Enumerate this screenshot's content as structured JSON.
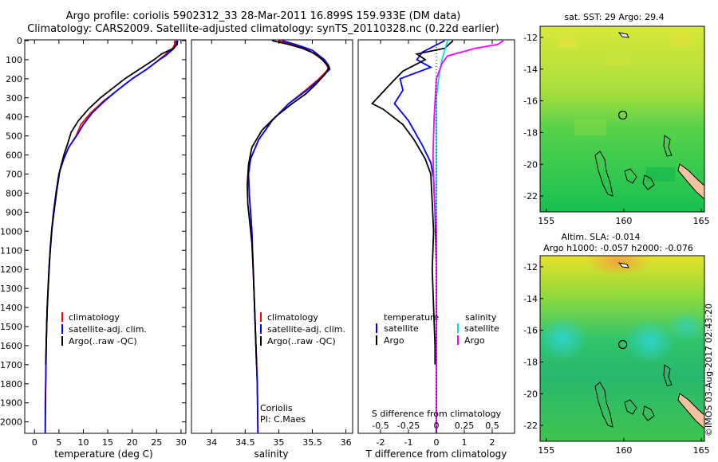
{
  "figure": {
    "title_line1": "Argo profile: coriolis 5902312_33 28-Mar-2011 16.899S 159.933E (DM data)",
    "title_line2": "Climatology: CARS2009. Satellite-adjusted climatology: synTS_20110328.nc (0.22d earlier)",
    "stamp": "©IMOS 03-Aug-2017 02:43:20",
    "colors": {
      "red": "#ff0000",
      "blue": "#0000ff",
      "black": "#000000",
      "cyan": "#00e0e0",
      "magenta": "#ff00ff"
    }
  },
  "chart_data": [
    {
      "type": "line",
      "name": "temperature-profile",
      "xlabel": "temperature (deg C)",
      "xlim": [
        -2,
        31
      ],
      "xticks": [
        0,
        5,
        10,
        15,
        20,
        25,
        30
      ],
      "xtick_labels": [
        "0",
        "5",
        "10",
        "15",
        "20",
        "25",
        "30"
      ],
      "ylim": [
        2060,
        0
      ],
      "yticks": [
        0,
        100,
        200,
        300,
        400,
        500,
        600,
        700,
        800,
        900,
        1000,
        1100,
        1200,
        1300,
        1400,
        1500,
        1600,
        1700,
        1800,
        1900,
        2000
      ],
      "ytick_labels": [
        "0",
        "100",
        "200",
        "300",
        "400",
        "500",
        "600",
        "700",
        "800",
        "900",
        "1000",
        "1100",
        "1200",
        "1300",
        "1400",
        "1500",
        "1600",
        "1700",
        "1800",
        "1900",
        "2000"
      ],
      "legend": [
        "climatology",
        "satellite-adj. clim.",
        "Argo(..raw -QC)"
      ],
      "series": [
        {
          "name": "climatology",
          "color": "red",
          "points": [
            [
              28.7,
              0
            ],
            [
              28.7,
              20
            ],
            [
              28.3,
              40
            ],
            [
              26.5,
              80
            ],
            [
              25.5,
              100
            ],
            [
              23.0,
              150
            ],
            [
              20.0,
              200
            ],
            [
              17.0,
              260
            ],
            [
              14.0,
              320
            ],
            [
              11.5,
              380
            ],
            [
              9.5,
              440
            ],
            [
              8.5,
              500
            ],
            [
              7.0,
              560
            ],
            [
              6.0,
              620
            ],
            [
              5.0,
              700
            ],
            [
              4.4,
              800
            ],
            [
              3.9,
              900
            ],
            [
              3.5,
              1000
            ],
            [
              3.2,
              1100
            ],
            [
              3.0,
              1200
            ],
            [
              2.8,
              1300
            ],
            [
              2.6,
              1400
            ],
            [
              2.5,
              1500
            ],
            [
              2.4,
              1600
            ],
            [
              2.3,
              1800
            ],
            [
              2.2,
              1900
            ],
            [
              2.2,
              2060
            ]
          ]
        },
        {
          "name": "satellite-adj. clim.",
          "color": "blue",
          "points": [
            [
              29.0,
              0
            ],
            [
              29.0,
              20
            ],
            [
              28.6,
              40
            ],
            [
              26.8,
              80
            ],
            [
              25.6,
              100
            ],
            [
              23.0,
              150
            ],
            [
              20.0,
              200
            ],
            [
              17.0,
              260
            ],
            [
              14.2,
              320
            ],
            [
              11.8,
              380
            ],
            [
              10.0,
              440
            ],
            [
              8.6,
              500
            ],
            [
              7.0,
              560
            ],
            [
              6.0,
              620
            ],
            [
              5.0,
              700
            ],
            [
              4.4,
              800
            ],
            [
              3.9,
              900
            ],
            [
              3.5,
              1000
            ],
            [
              3.2,
              1100
            ],
            [
              3.0,
              1200
            ],
            [
              2.8,
              1300
            ],
            [
              2.6,
              1400
            ],
            [
              2.5,
              1500
            ],
            [
              2.4,
              1600
            ],
            [
              2.3,
              1800
            ],
            [
              2.2,
              2060
            ]
          ]
        },
        {
          "name": "Argo(..raw -QC)",
          "color": "black",
          "points": [
            [
              29.3,
              0
            ],
            [
              29.2,
              20
            ],
            [
              28.5,
              40
            ],
            [
              26.0,
              70
            ],
            [
              24.5,
              100
            ],
            [
              21.5,
              150
            ],
            [
              18.5,
              200
            ],
            [
              16.0,
              250
            ],
            [
              13.5,
              300
            ],
            [
              11.0,
              360
            ],
            [
              9.0,
              420
            ],
            [
              7.5,
              480
            ],
            [
              6.8,
              540
            ],
            [
              6.0,
              600
            ],
            [
              5.2,
              680
            ],
            [
              4.6,
              780
            ],
            [
              4.1,
              880
            ],
            [
              3.6,
              980
            ],
            [
              3.3,
              1080
            ],
            [
              3.0,
              1180
            ],
            [
              2.8,
              1280
            ],
            [
              2.6,
              1400
            ],
            [
              2.5,
              1500
            ],
            [
              2.4,
              1600
            ],
            [
              2.3,
              1700
            ]
          ]
        }
      ]
    },
    {
      "type": "line",
      "name": "salinity-profile",
      "xlabel": "salinity",
      "xlim": [
        33.7,
        36.1
      ],
      "xticks": [
        34,
        34.5,
        35,
        35.5,
        36
      ],
      "xtick_labels": [
        "34",
        "34.5",
        "35",
        "35.5",
        "36"
      ],
      "ylim": [
        2060,
        0
      ],
      "legend": [
        "climatology",
        "satellite-adj. clim.",
        "Argo(..raw -QC)"
      ],
      "annotation": [
        "Coriolis",
        "PI: C.Maes"
      ],
      "series": [
        {
          "name": "climatology",
          "color": "red",
          "points": [
            [
              35.0,
              0
            ],
            [
              35.2,
              20
            ],
            [
              35.45,
              50
            ],
            [
              35.65,
              100
            ],
            [
              35.72,
              130
            ],
            [
              35.74,
              150
            ],
            [
              35.6,
              200
            ],
            [
              35.4,
              260
            ],
            [
              35.15,
              330
            ],
            [
              34.9,
              420
            ],
            [
              34.7,
              520
            ],
            [
              34.58,
              620
            ],
            [
              34.55,
              700
            ],
            [
              34.56,
              800
            ],
            [
              34.58,
              900
            ],
            [
              34.6,
              1000
            ],
            [
              34.62,
              1200
            ],
            [
              34.64,
              1400
            ],
            [
              34.66,
              1600
            ],
            [
              34.68,
              1800
            ],
            [
              34.69,
              2060
            ]
          ]
        },
        {
          "name": "satellite-adj. clim.",
          "color": "blue",
          "points": [
            [
              35.05,
              0
            ],
            [
              35.25,
              20
            ],
            [
              35.5,
              50
            ],
            [
              35.68,
              100
            ],
            [
              35.74,
              130
            ],
            [
              35.76,
              150
            ],
            [
              35.62,
              200
            ],
            [
              35.42,
              260
            ],
            [
              35.15,
              330
            ],
            [
              34.9,
              420
            ],
            [
              34.7,
              520
            ],
            [
              34.58,
              620
            ],
            [
              34.55,
              700
            ],
            [
              34.56,
              800
            ],
            [
              34.58,
              900
            ],
            [
              34.6,
              1000
            ],
            [
              34.62,
              1200
            ],
            [
              34.64,
              1400
            ],
            [
              34.66,
              1600
            ],
            [
              34.68,
              1800
            ],
            [
              34.69,
              2060
            ]
          ]
        },
        {
          "name": "Argo(..raw -QC)",
          "color": "black",
          "points": [
            [
              34.9,
              0
            ],
            [
              35.15,
              20
            ],
            [
              35.35,
              40
            ],
            [
              35.55,
              70
            ],
            [
              35.65,
              100
            ],
            [
              35.75,
              140
            ],
            [
              35.68,
              180
            ],
            [
              35.55,
              230
            ],
            [
              35.4,
              280
            ],
            [
              35.2,
              330
            ],
            [
              34.95,
              400
            ],
            [
              34.75,
              470
            ],
            [
              34.6,
              560
            ],
            [
              34.55,
              650
            ],
            [
              34.53,
              760
            ],
            [
              34.54,
              860
            ],
            [
              34.57,
              960
            ],
            [
              34.6,
              1060
            ],
            [
              34.62,
              1200
            ],
            [
              34.64,
              1400
            ],
            [
              34.66,
              1600
            ],
            [
              34.67,
              1700
            ]
          ]
        }
      ]
    },
    {
      "type": "line",
      "name": "difference-profile",
      "xlabel_bottom": "T difference from climatology",
      "xlabel_top": "S difference from climatology",
      "xlim": [
        -2.8,
        2.8
      ],
      "xticks": [
        -2,
        -1,
        0,
        1,
        2
      ],
      "xtick_labels": [
        "-2",
        "-1",
        "0",
        "1",
        "2"
      ],
      "sticks": [
        -0.5,
        -0.25,
        0,
        0.25,
        0.5
      ],
      "stick_labels": [
        "-0.5",
        "-0.25",
        "0",
        "0.25",
        "0.5"
      ],
      "s_scale": 4,
      "ylim": [
        2060,
        0
      ],
      "legend_temperature": [
        "temperature",
        "satellite",
        "Argo"
      ],
      "legend_salinity": [
        "salinity",
        "satellite",
        "Argo"
      ],
      "series": [
        {
          "name": "temperature satellite",
          "color": "blue",
          "points": [
            [
              0.3,
              0
            ],
            [
              -0.5,
              60
            ],
            [
              -0.7,
              100
            ],
            [
              -0.2,
              140
            ],
            [
              -1.3,
              200
            ],
            [
              -1.2,
              260
            ],
            [
              -1.5,
              330
            ],
            [
              -1.0,
              420
            ],
            [
              -0.5,
              550
            ],
            [
              -0.2,
              640
            ],
            [
              -0.1,
              720
            ],
            [
              -0.05,
              900
            ],
            [
              0,
              1200
            ],
            [
              0,
              2060
            ]
          ]
        },
        {
          "name": "temperature Argo",
          "color": "black",
          "points": [
            [
              0.6,
              0
            ],
            [
              0.3,
              40
            ],
            [
              -0.7,
              70
            ],
            [
              -0.4,
              100
            ],
            [
              -1.2,
              160
            ],
            [
              -1.6,
              220
            ],
            [
              -2.3,
              330
            ],
            [
              -1.9,
              360
            ],
            [
              -1.2,
              440
            ],
            [
              -0.8,
              520
            ],
            [
              -0.4,
              620
            ],
            [
              -0.2,
              700
            ],
            [
              -0.15,
              850
            ],
            [
              -0.1,
              1000
            ],
            [
              -0.15,
              1200
            ],
            [
              -0.1,
              1400
            ],
            [
              -0.05,
              1600
            ],
            [
              -0.05,
              1700
            ]
          ]
        },
        {
          "name": "salinity satellite",
          "color": "cyan",
          "points": [
            [
              0.1,
              0
            ],
            [
              0.05,
              100
            ],
            [
              0.02,
              200
            ],
            [
              0,
              300
            ],
            [
              0,
              2060
            ]
          ]
        },
        {
          "name": "salinity Argo",
          "color": "magenta",
          "points": [
            [
              0.6,
              0
            ],
            [
              0.55,
              20
            ],
            [
              0.35,
              40
            ],
            [
              0.1,
              80
            ],
            [
              0.05,
              120
            ],
            [
              0,
              200
            ],
            [
              -0.02,
              400
            ],
            [
              -0.03,
              600
            ],
            [
              -0.02,
              800
            ],
            [
              0,
              1000
            ],
            [
              0,
              2060
            ]
          ]
        }
      ]
    },
    {
      "type": "heatmap",
      "name": "sst-map",
      "title": "sat. SST: 29 Argo: 29.4",
      "xlim": [
        154.6,
        165.2
      ],
      "ylim": [
        -23,
        -11.3
      ],
      "xticks": [
        155,
        160,
        165
      ],
      "xtick_labels": [
        "155",
        "160",
        "165"
      ],
      "yticks": [
        -12,
        -14,
        -16,
        -18,
        -20,
        -22
      ],
      "ytick_labels": [
        "-12",
        "-14",
        "-16",
        "-18",
        "-20",
        "-22"
      ],
      "marker": [
        159.933,
        -16.899
      ]
    },
    {
      "type": "heatmap",
      "name": "sla-map",
      "title_line1": "Altim. SLA: -0.014",
      "title_line2": "Argo h1000: -0.057 h2000: -0.076",
      "xlim": [
        154.6,
        165.2
      ],
      "ylim": [
        -23,
        -11.3
      ],
      "xticks": [
        155,
        160,
        165
      ],
      "xtick_labels": [
        "155",
        "160",
        "165"
      ],
      "yticks": [
        -12,
        -14,
        -16,
        -18,
        -20,
        -22
      ],
      "ytick_labels": [
        "-12",
        "-14",
        "-16",
        "-18",
        "-20",
        "-22"
      ],
      "marker": [
        159.933,
        -16.899
      ]
    }
  ]
}
